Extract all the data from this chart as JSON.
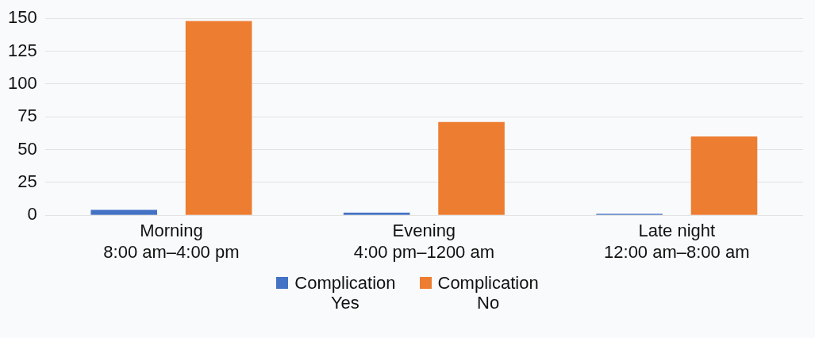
{
  "chart_data": {
    "type": "bar",
    "categories": [
      "Morning\n8:00 am–4:00 pm",
      "Evening\n4:00 pm–1200 am",
      "Late night\n12:00 am–8:00 am"
    ],
    "series": [
      {
        "name": "Complication\nYes",
        "color": "#4472c4",
        "values": [
          4,
          2,
          1
        ]
      },
      {
        "name": "Complication\nNo",
        "color": "#ed7d31",
        "values": [
          148,
          71,
          60
        ]
      }
    ],
    "ylim": [
      0,
      150
    ],
    "yticks": [
      0,
      25,
      50,
      75,
      100,
      125,
      150
    ],
    "grid": "y",
    "legend": "bottom"
  }
}
